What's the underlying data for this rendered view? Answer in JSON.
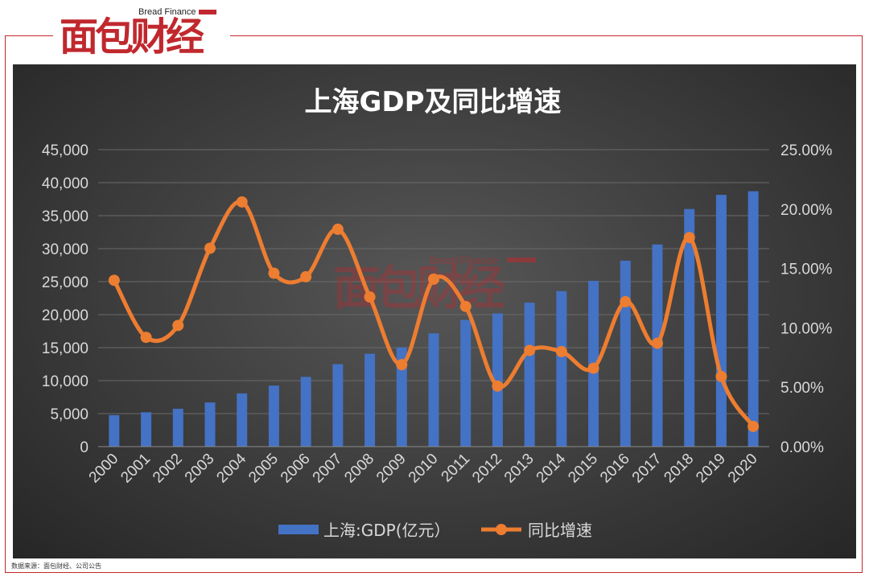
{
  "brand": {
    "logo_text": "面包财经",
    "logo_sub": "Bread Finance",
    "accent": "#c0282e"
  },
  "source_note": "数据来源：面包财经、公司公告",
  "chart_data": {
    "type": "bar",
    "title": "上海GDP及同比增速",
    "categories": [
      "2000",
      "2001",
      "2002",
      "2003",
      "2004",
      "2005",
      "2006",
      "2007",
      "2008",
      "2009",
      "2010",
      "2011",
      "2012",
      "2013",
      "2014",
      "2015",
      "2016",
      "2017",
      "2018",
      "2019",
      "2020"
    ],
    "series": [
      {
        "name": "上海:GDP(亿元）",
        "type": "bar",
        "axis": "left",
        "color": "#4472c4",
        "values": [
          4771,
          5210,
          5741,
          6694,
          8073,
          9248,
          10572,
          12494,
          14070,
          15046,
          17166,
          19196,
          20182,
          21818,
          23568,
          25123,
          28179,
          30633,
          36012,
          38155,
          38701
        ]
      },
      {
        "name": "同比增速",
        "type": "line",
        "axis": "right",
        "color": "#ed7d31",
        "smooth": true,
        "values": [
          14.0,
          9.2,
          10.2,
          16.7,
          20.6,
          14.6,
          14.3,
          18.3,
          12.6,
          6.9,
          14.1,
          11.8,
          5.1,
          8.1,
          8.0,
          6.6,
          12.2,
          8.7,
          17.6,
          5.9,
          1.7
        ]
      }
    ],
    "y_left": {
      "min": 0,
      "max": 45000,
      "step": 5000,
      "ticks": [
        "0",
        "5,000",
        "10,000",
        "15,000",
        "20,000",
        "25,000",
        "30,000",
        "35,000",
        "40,000",
        "45,000"
      ]
    },
    "y_right": {
      "min": 0,
      "max": 25,
      "step": 5,
      "ticks": [
        "0.00%",
        "5.00%",
        "10.00%",
        "15.00%",
        "20.00%",
        "25.00%"
      ]
    },
    "grid": true,
    "legend_position": "bottom",
    "watermark": "面包财经 Bread Finance"
  }
}
